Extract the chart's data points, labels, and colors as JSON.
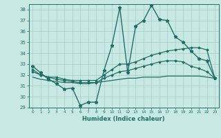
{
  "title": "",
  "xlabel": "Humidex (Indice chaleur)",
  "xlim": [
    -0.5,
    23.5
  ],
  "ylim": [
    29,
    38.5
  ],
  "yticks": [
    29,
    30,
    31,
    32,
    33,
    34,
    35,
    36,
    37,
    38
  ],
  "xticks": [
    0,
    1,
    2,
    3,
    4,
    5,
    6,
    7,
    8,
    9,
    10,
    11,
    12,
    13,
    14,
    15,
    16,
    17,
    18,
    19,
    20,
    21,
    22,
    23
  ],
  "bg_color": "#c8e8e4",
  "line_color": "#1e6e66",
  "grid_color": "#a8ccca",
  "series": [
    {
      "x": [
        0,
        1,
        2,
        3,
        4,
        5,
        6,
        7,
        8,
        9,
        10,
        11,
        12,
        13,
        14,
        15,
        16,
        17,
        18,
        19,
        20,
        21,
        22,
        23
      ],
      "y": [
        32.8,
        32.2,
        31.6,
        31.2,
        30.7,
        30.8,
        29.2,
        29.5,
        29.5,
        32.4,
        34.7,
        38.2,
        32.2,
        36.5,
        37.0,
        38.4,
        37.1,
        37.0,
        35.5,
        35.0,
        34.2,
        33.5,
        33.3,
        31.7
      ],
      "marker": "*",
      "markersize": 3.5,
      "linewidth": 1.0
    },
    {
      "x": [
        0,
        1,
        2,
        3,
        4,
        5,
        6,
        7,
        8,
        9,
        10,
        11,
        12,
        13,
        14,
        15,
        16,
        17,
        18,
        19,
        20,
        21,
        22,
        23
      ],
      "y": [
        32.5,
        32.0,
        31.8,
        31.8,
        31.6,
        31.5,
        31.5,
        31.5,
        31.5,
        32.0,
        32.5,
        33.0,
        33.0,
        33.2,
        33.5,
        33.8,
        34.0,
        34.2,
        34.3,
        34.4,
        34.5,
        34.5,
        34.3,
        31.7
      ],
      "marker": "D",
      "markersize": 1.5,
      "linewidth": 0.9
    },
    {
      "x": [
        0,
        1,
        2,
        3,
        4,
        5,
        6,
        7,
        8,
        9,
        10,
        11,
        12,
        13,
        14,
        15,
        16,
        17,
        18,
        19,
        20,
        21,
        22,
        23
      ],
      "y": [
        32.3,
        32.0,
        31.8,
        31.6,
        31.5,
        31.4,
        31.3,
        31.3,
        31.3,
        31.7,
        32.0,
        32.3,
        32.4,
        32.6,
        32.8,
        33.0,
        33.2,
        33.3,
        33.3,
        33.2,
        32.8,
        32.6,
        32.3,
        31.7
      ],
      "marker": "D",
      "markersize": 1.5,
      "linewidth": 0.9
    },
    {
      "x": [
        0,
        1,
        2,
        3,
        4,
        5,
        6,
        7,
        8,
        9,
        10,
        11,
        12,
        13,
        14,
        15,
        16,
        17,
        18,
        19,
        20,
        21,
        22,
        23
      ],
      "y": [
        31.8,
        31.6,
        31.5,
        31.4,
        31.3,
        31.3,
        31.2,
        31.2,
        31.3,
        31.4,
        31.5,
        31.6,
        31.7,
        31.7,
        31.8,
        31.8,
        31.8,
        31.9,
        31.9,
        31.9,
        31.9,
        31.9,
        31.8,
        31.7
      ],
      "marker": null,
      "markersize": 0,
      "linewidth": 0.9
    }
  ]
}
